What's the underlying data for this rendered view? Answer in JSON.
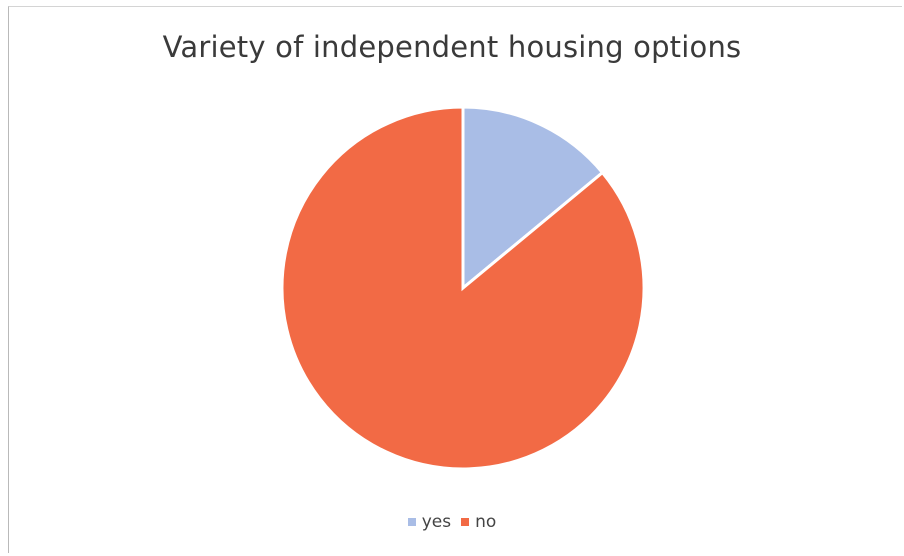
{
  "chart_data": {
    "type": "pie",
    "title": "Variety of independent housing options",
    "categories": [
      "yes",
      "no"
    ],
    "values": [
      14,
      86
    ],
    "colors": [
      "#a9bde6",
      "#f26a45"
    ],
    "legend_position": "bottom"
  }
}
